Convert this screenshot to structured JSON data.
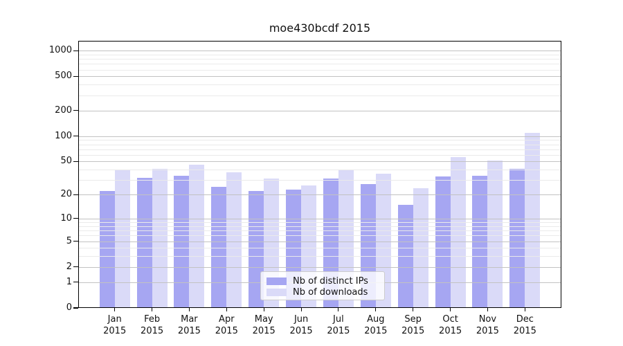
{
  "title": "moe430bcdf 2015",
  "chart_data": {
    "type": "bar",
    "title": "moe430bcdf 2015",
    "categories": [
      "Jan",
      "Feb",
      "Mar",
      "Apr",
      "May",
      "Jun",
      "Jul",
      "Aug",
      "Sep",
      "Oct",
      "Nov",
      "Dec"
    ],
    "x_tick_year": "2015",
    "series": [
      {
        "name": "Nb of distinct IPs",
        "color": "#a6a6f2",
        "values": [
          22,
          32,
          34,
          25,
          22,
          23,
          31,
          27,
          15,
          33,
          34,
          41
        ]
      },
      {
        "name": "Nb of downloads",
        "color": "#dadaf8",
        "values": [
          40,
          41,
          46,
          37,
          31,
          26,
          40,
          36,
          24,
          56,
          51,
          110
        ]
      }
    ],
    "xlabel": "",
    "ylabel": "",
    "y_scale": "log10(1+x)",
    "y_ticks": [
      0,
      1,
      2,
      5,
      10,
      20,
      50,
      100,
      200,
      500,
      1000
    ],
    "y_minor_ticks": [
      3,
      4,
      6,
      7,
      8,
      9,
      30,
      40,
      60,
      70,
      80,
      90,
      300,
      400,
      600,
      700,
      800,
      900
    ],
    "ylim": [
      0,
      1300
    ],
    "grid": true,
    "grid_major_color": "#c2c2c2",
    "grid_minor_color": "#eaeaea",
    "axis_color": "#000000",
    "legend_position": "lower center inside"
  }
}
